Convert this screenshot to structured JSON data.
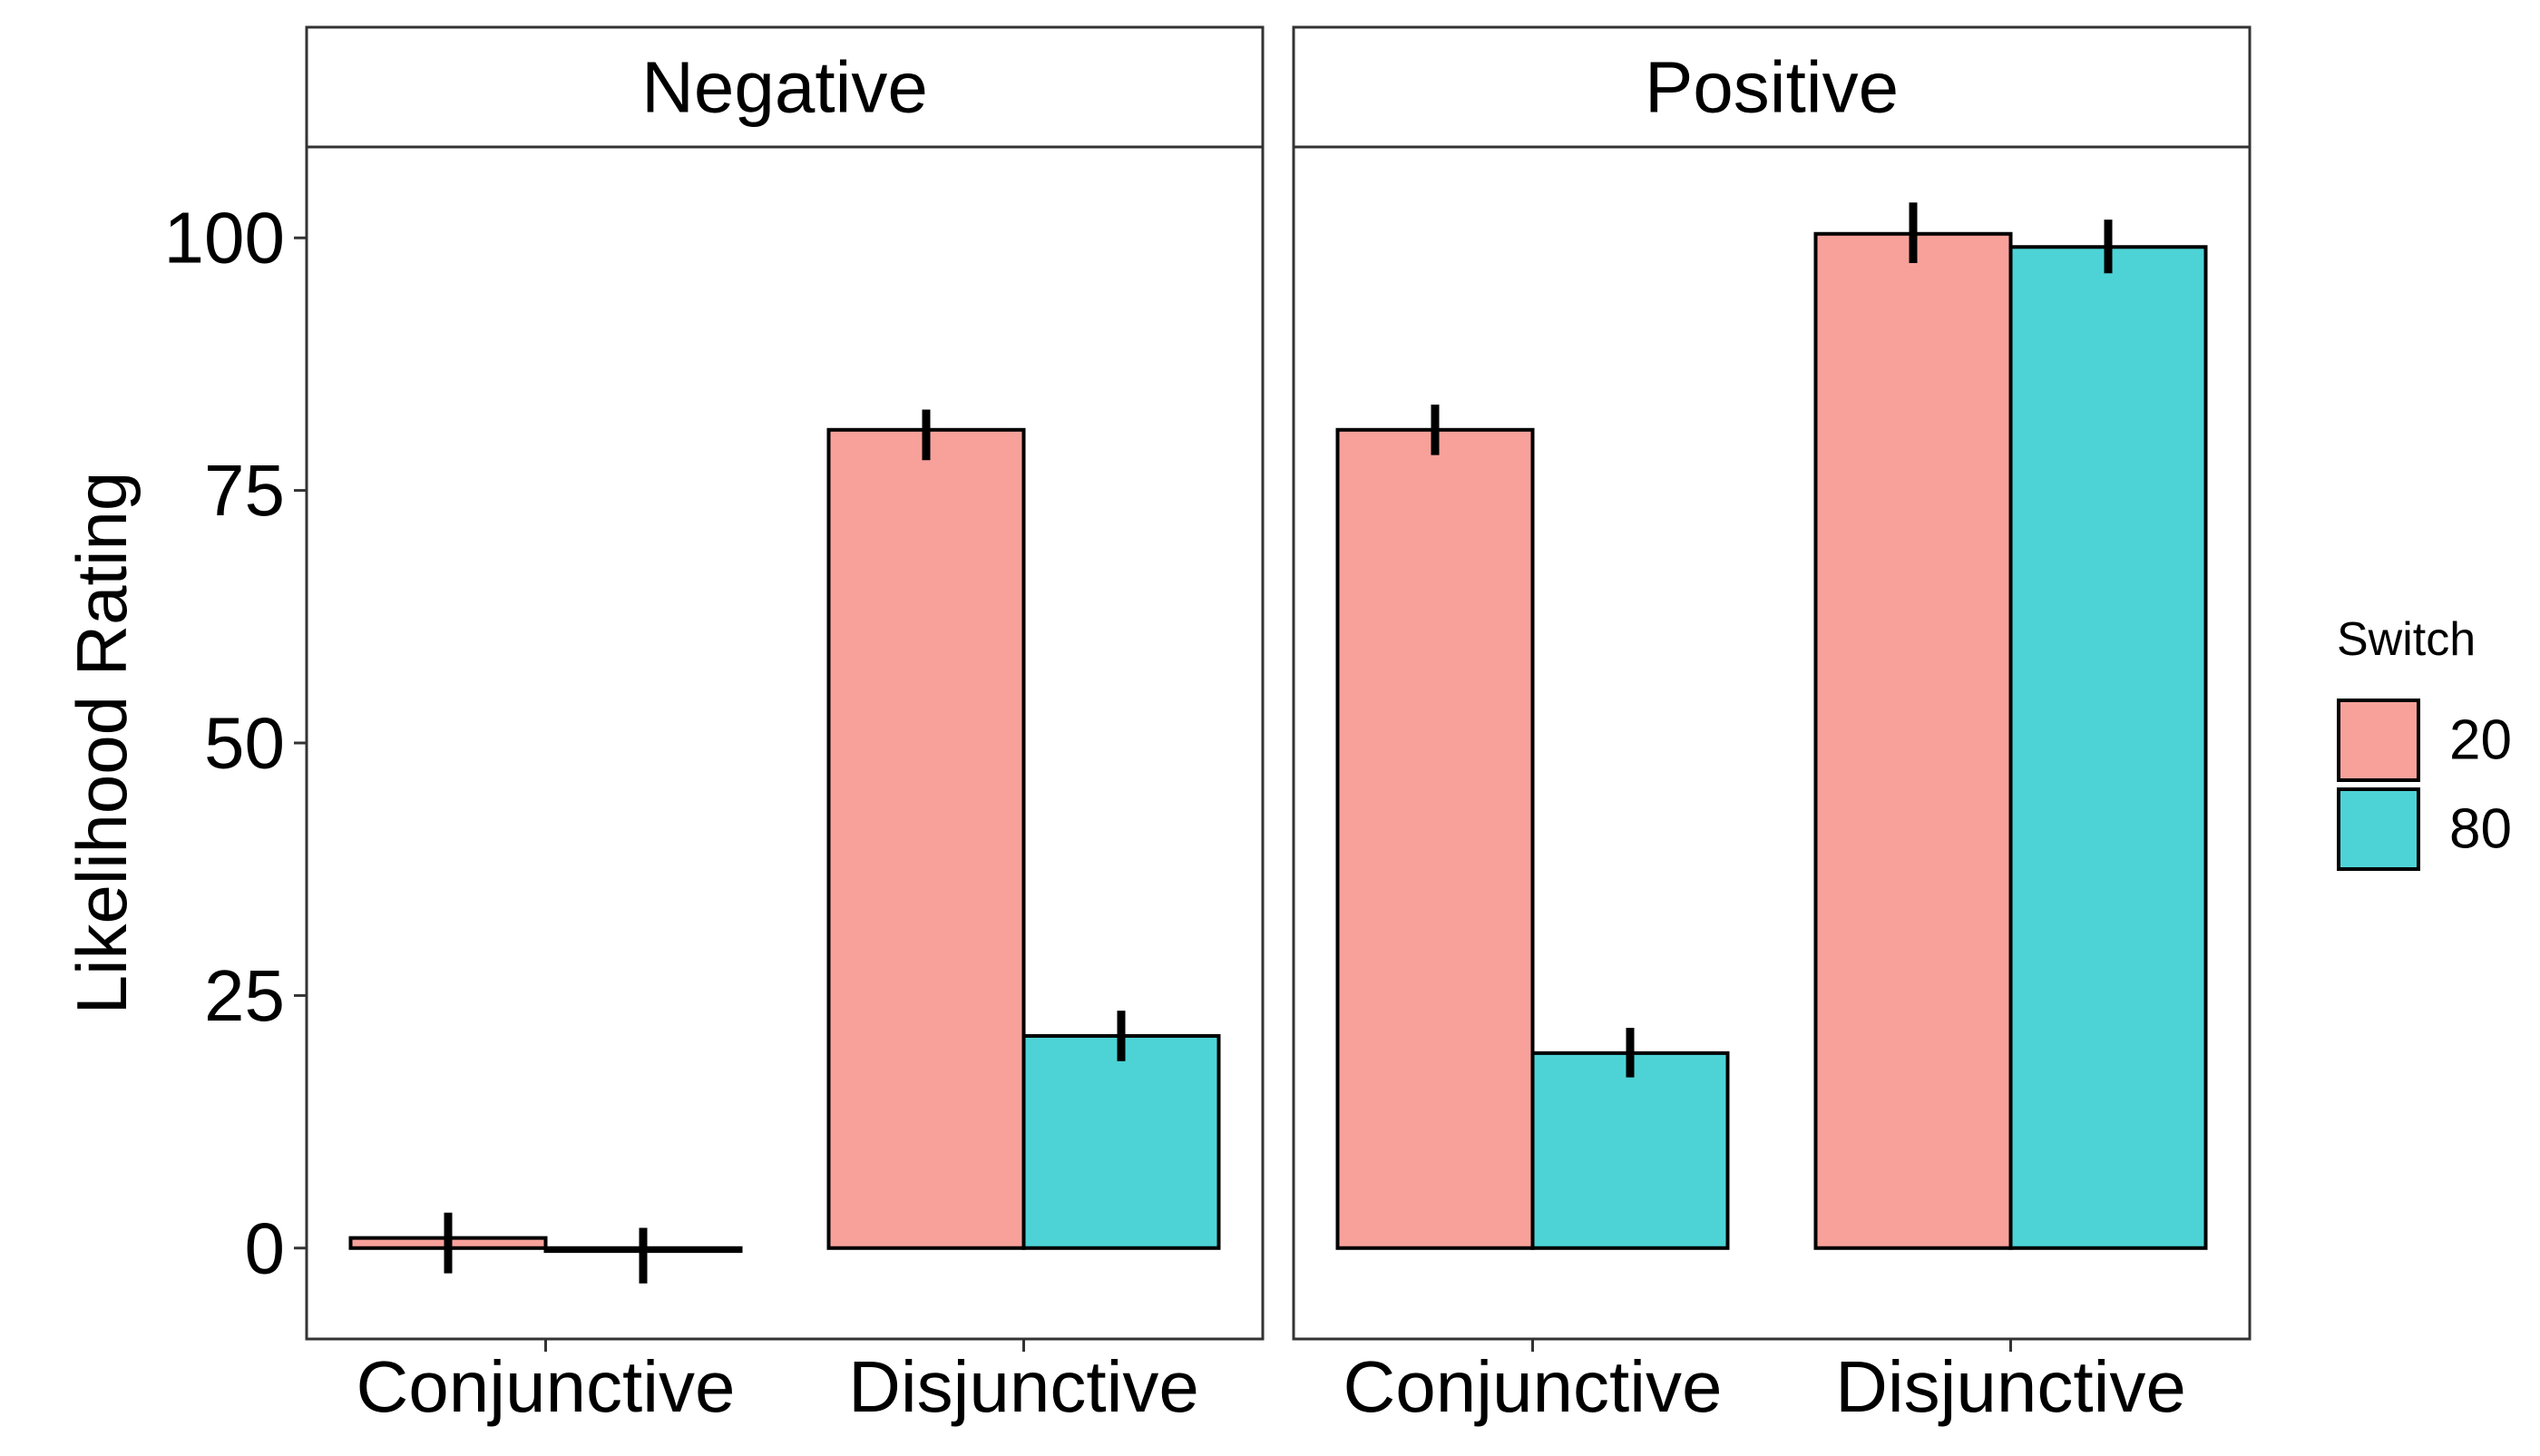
{
  "chart_data": {
    "type": "bar",
    "title": "",
    "xlabel": "",
    "ylabel": "Likelihood Rating",
    "ylim": [
      -9,
      109
    ],
    "yticks": [
      0,
      25,
      50,
      75,
      100
    ],
    "yticklabels": [
      "0",
      "25",
      "50",
      "75",
      "100"
    ],
    "categories": [
      "Conjunctive",
      "Disjunctive"
    ],
    "grid": false,
    "legend": {
      "title": "Switch",
      "placement": "right",
      "entries": [
        "20",
        "80"
      ]
    },
    "series_colors": {
      "20": "#F8A19B",
      "80": "#4DD3D6"
    },
    "facets": [
      {
        "label": "Negative",
        "series": [
          {
            "name": "20",
            "values": [
              1,
              81
            ],
            "error_low": [
              -2.5,
              78
            ],
            "error_high": [
              3.5,
              83
            ]
          },
          {
            "name": "80",
            "values": [
              -0.3,
              21
            ],
            "error_low": [
              -3.5,
              18.5
            ],
            "error_high": [
              2,
              23.5
            ]
          }
        ]
      },
      {
        "label": "Positive",
        "series": [
          {
            "name": "20",
            "values": [
              81,
              100.4
            ],
            "error_low": [
              78.5,
              97.5
            ],
            "error_high": [
              83.5,
              103.5
            ]
          },
          {
            "name": "80",
            "values": [
              19.3,
              99.1
            ],
            "error_low": [
              16.9,
              96.5
            ],
            "error_high": [
              21.8,
              101.8
            ]
          }
        ]
      }
    ]
  }
}
